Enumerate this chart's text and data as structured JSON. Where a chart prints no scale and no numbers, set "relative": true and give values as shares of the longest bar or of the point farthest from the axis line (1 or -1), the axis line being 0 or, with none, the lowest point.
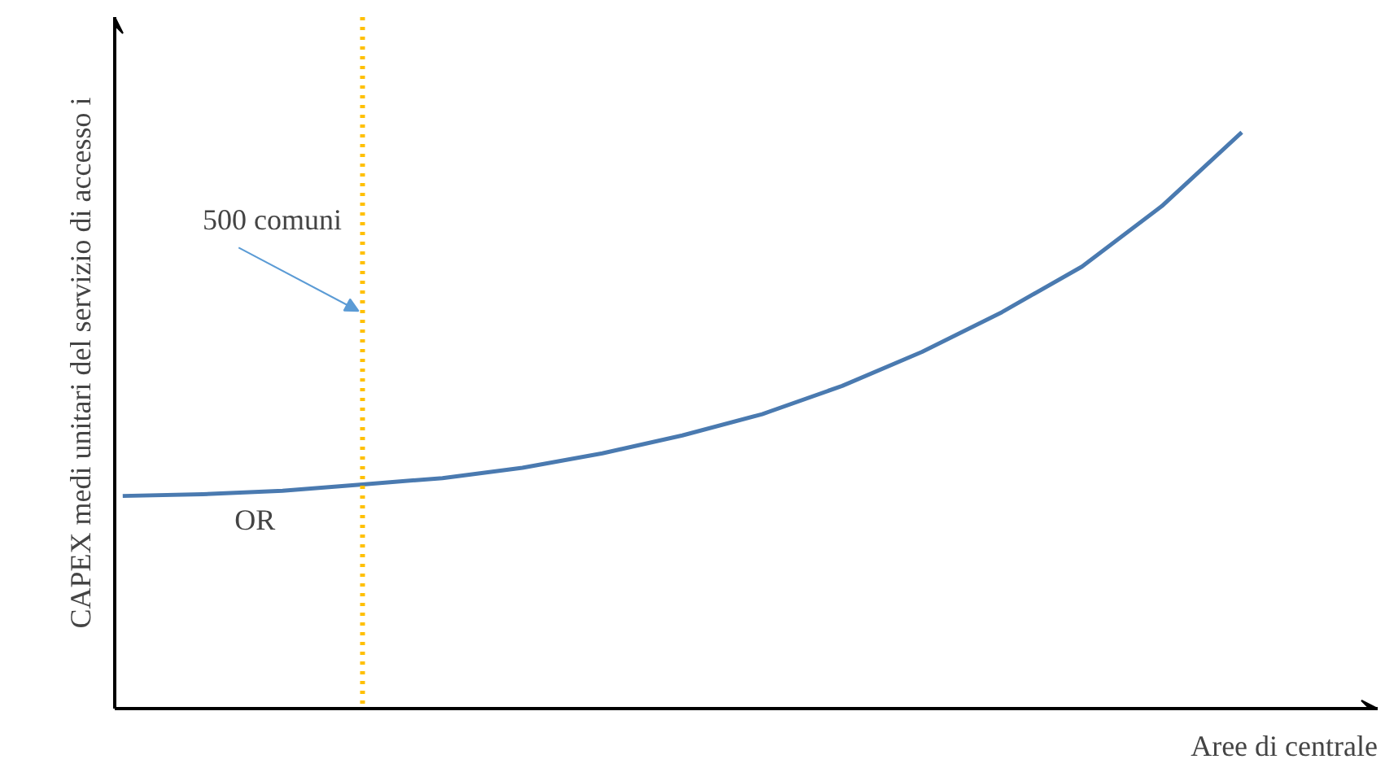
{
  "chart_data": {
    "type": "line",
    "relative": true,
    "xlabel": "Aree di centrale",
    "ylabel": "CAPEX medi unitari del servizio di accesso i",
    "categories": [
      null,
      null,
      null,
      null,
      null,
      null,
      null,
      null,
      null,
      null,
      null,
      null,
      null,
      null,
      null
    ],
    "series": [
      {
        "color": "#4a7ab0",
        "values": [
          0.369,
          0.372,
          0.378,
          0.389,
          0.4,
          0.418,
          0.443,
          0.474,
          0.511,
          0.56,
          0.619,
          0.688,
          0.767,
          0.872,
          1.0
        ]
      }
    ],
    "annotations": [
      "500 comuni",
      "OR"
    ],
    "grid": false,
    "tick_labels": false,
    "marker": "none",
    "line_style": "solid"
  }
}
